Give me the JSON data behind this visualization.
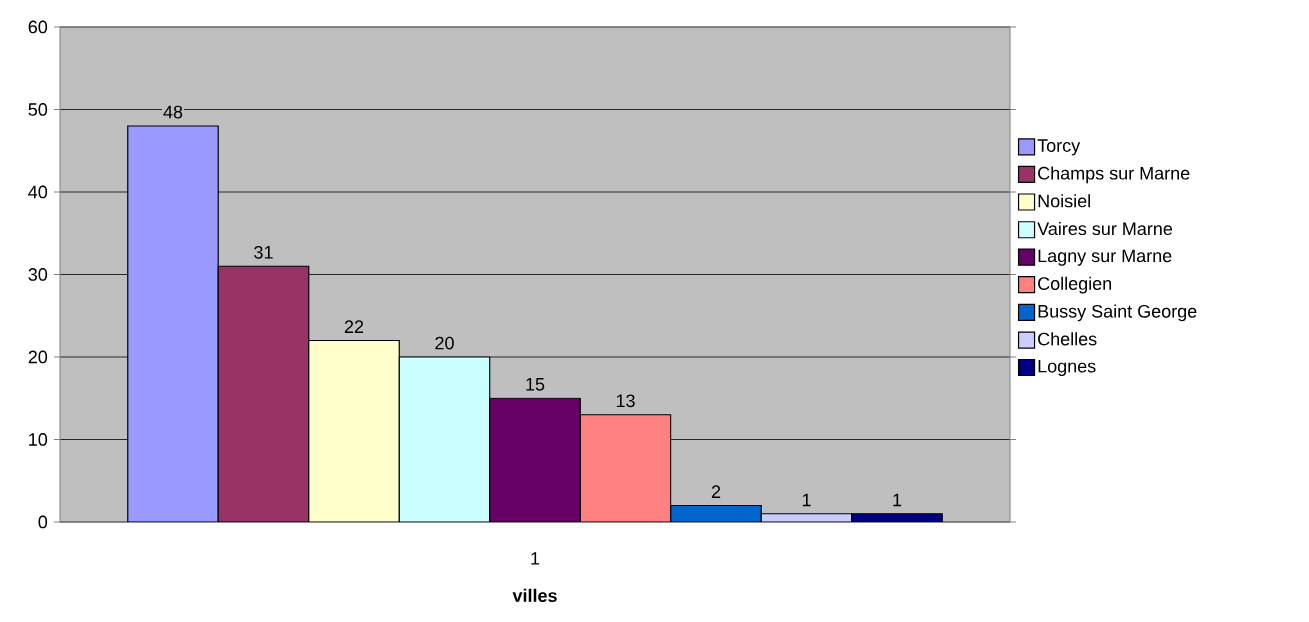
{
  "chart_data": {
    "type": "bar",
    "xlabel": "villes",
    "categories": [
      "1"
    ],
    "series": [
      {
        "name": "Torcy",
        "color": "#9999ff",
        "values": [
          48
        ]
      },
      {
        "name": "Champs sur Marne",
        "color": "#993366",
        "values": [
          31
        ]
      },
      {
        "name": "Noisiel",
        "color": "#ffffcc",
        "values": [
          22
        ]
      },
      {
        "name": "Vaires sur Marne",
        "color": "#ccffff",
        "values": [
          20
        ]
      },
      {
        "name": "Lagny sur Marne",
        "color": "#660066",
        "values": [
          15
        ]
      },
      {
        "name": "Collegien",
        "color": "#ff8080",
        "values": [
          13
        ]
      },
      {
        "name": "Bussy Saint George",
        "color": "#0066cc",
        "values": [
          2
        ]
      },
      {
        "name": "Chelles",
        "color": "#ccccff",
        "values": [
          1
        ]
      },
      {
        "name": "Lognes",
        "color": "#000080",
        "values": [
          1
        ]
      }
    ],
    "ylim": [
      0,
      60
    ],
    "yticks": [
      0,
      10,
      20,
      30,
      40,
      50,
      60
    ],
    "grid": "y",
    "legend": "right",
    "data_labels": true
  }
}
